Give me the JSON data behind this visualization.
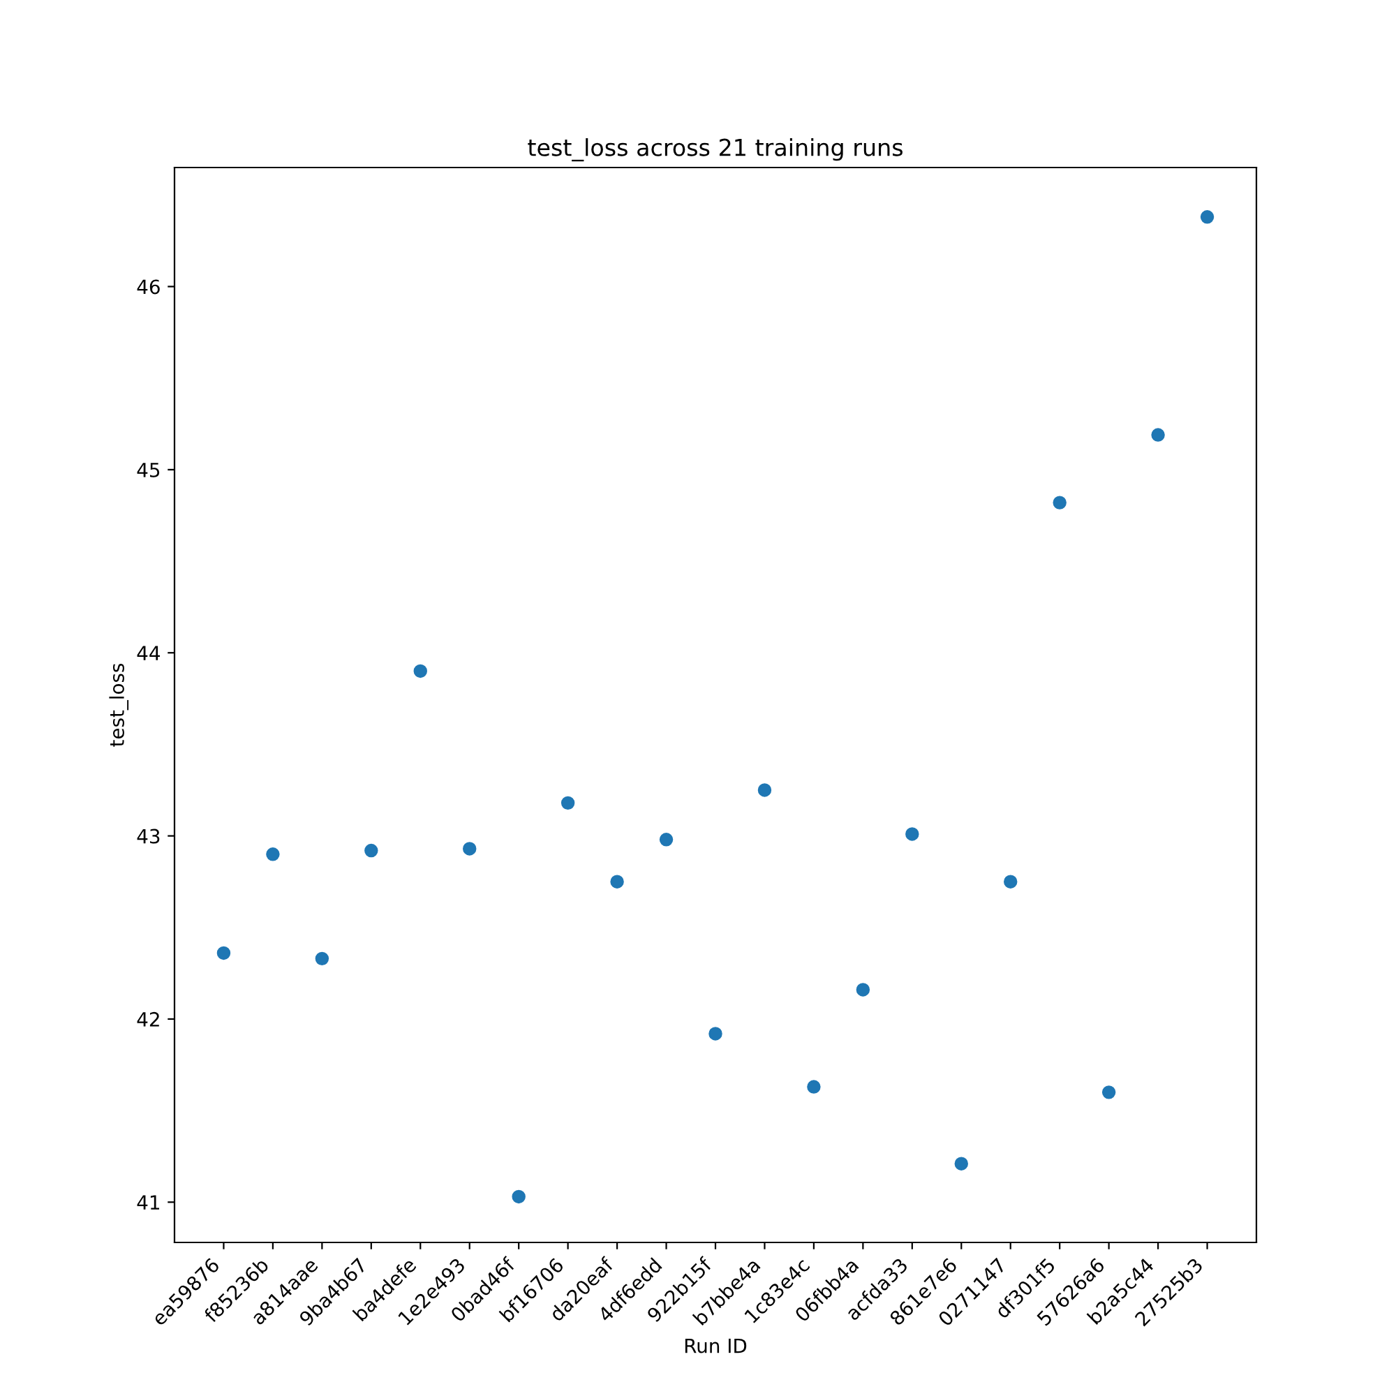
{
  "chart_data": {
    "type": "scatter",
    "title": "test_loss across 21 training runs",
    "xlabel": "Run ID",
    "ylabel": "test_loss",
    "categories": [
      "ea59876",
      "f85236b",
      "a814aae",
      "9ba4b67",
      "ba4defe",
      "1e2e493",
      "0bad46f",
      "bf16706",
      "da20eaf",
      "4df6edd",
      "922b15f",
      "b7bbe4a",
      "1c83e4c",
      "06fbb4a",
      "acfda33",
      "861e7e6",
      "0271147",
      "df301f5",
      "57626a6",
      "b2a5c44",
      "27525b3"
    ],
    "series": [
      {
        "color": "#1f77b4",
        "values": [
          42.36,
          42.9,
          42.33,
          42.92,
          43.9,
          42.93,
          41.03,
          43.18,
          42.75,
          42.98,
          41.92,
          43.25,
          41.63,
          42.16,
          43.01,
          41.21,
          42.75,
          44.82,
          41.6,
          45.19,
          46.38
        ]
      }
    ],
    "ylim": [
      40.78,
      46.65
    ],
    "yticks": [
      41,
      42,
      43,
      44,
      45,
      46
    ],
    "marker": "circle",
    "grid": false,
    "legend": false
  }
}
